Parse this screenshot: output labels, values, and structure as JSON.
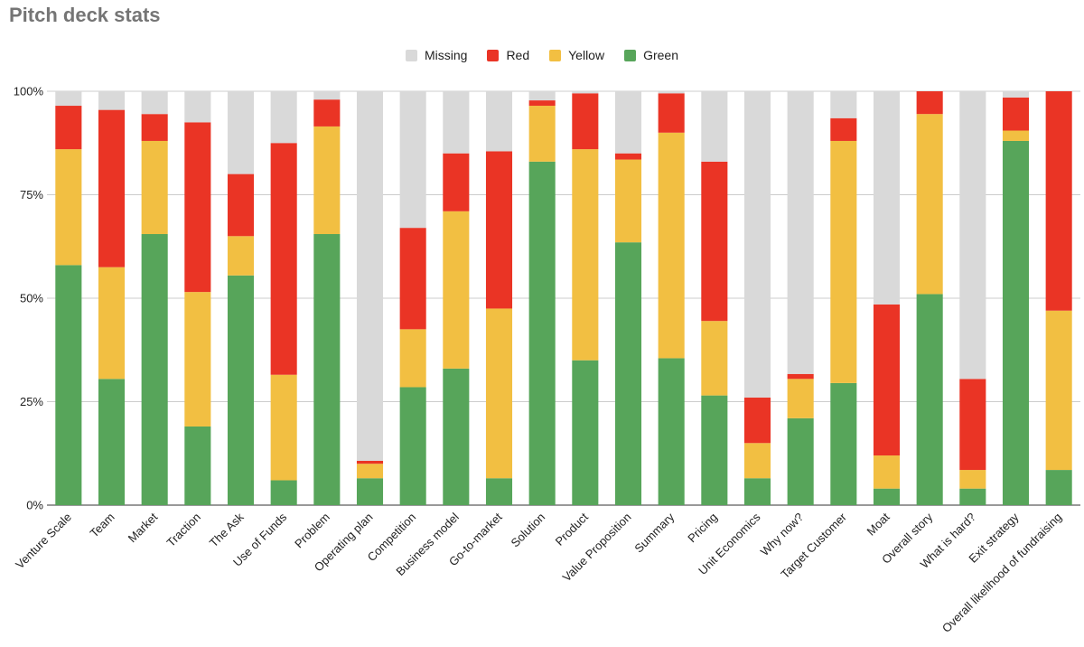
{
  "chart_data": {
    "type": "bar",
    "stacked": "percent",
    "title": "Pitch deck stats",
    "xlabel": "",
    "ylabel": "",
    "ylim": [
      0,
      100
    ],
    "yticks": [
      {
        "value": 0,
        "label": "0%"
      },
      {
        "value": 25,
        "label": "25%"
      },
      {
        "value": 50,
        "label": "50%"
      },
      {
        "value": 75,
        "label": "75%"
      },
      {
        "value": 100,
        "label": "100%"
      }
    ],
    "grid": true,
    "legend_position": "top-center",
    "categories": [
      "Venture Scale",
      "Team",
      "Market",
      "Traction",
      "The Ask",
      "Use of Funds",
      "Problem",
      "Operating plan",
      "Competition",
      "Business model",
      "Go-to-market",
      "Solution",
      "Product",
      "Value Proposition",
      "Summary",
      "Pricing",
      "Unit Economics",
      "Why now?",
      "Target Customer",
      "Moat",
      "Overall story",
      "What is hard?",
      "Exit strategy",
      "Overall likelihood of fundraising"
    ],
    "series": [
      {
        "name": "Green",
        "color": "#57a55a",
        "values": [
          58,
          30.5,
          65.5,
          19,
          55.5,
          6,
          65.5,
          6.5,
          28.5,
          33,
          6.5,
          83,
          35,
          63.5,
          35.5,
          26.5,
          6.5,
          21,
          29.5,
          4,
          51,
          4,
          88,
          8.5
        ]
      },
      {
        "name": "Yellow",
        "color": "#f2bf42",
        "values": [
          28,
          27,
          22.5,
          32.5,
          9.5,
          25.5,
          26,
          3.5,
          14,
          38,
          41,
          13.5,
          51,
          20,
          54.5,
          18,
          8.5,
          9.5,
          58.5,
          8,
          43.5,
          4.5,
          2.5,
          38.5
        ]
      },
      {
        "name": "Red",
        "color": "#ea3425",
        "values": [
          10.5,
          38,
          6.5,
          41,
          15,
          56,
          6.5,
          0.7,
          24.5,
          14,
          38,
          1.3,
          13.5,
          1.5,
          9.5,
          38.5,
          11,
          1.2,
          5.5,
          36.5,
          5.5,
          22,
          8,
          53
        ]
      },
      {
        "name": "Missing",
        "color": "#d9d9d9",
        "values": [
          3.5,
          4.5,
          5.5,
          7.5,
          20,
          12.5,
          2,
          89.3,
          33,
          15,
          14.5,
          2.2,
          0.5,
          15,
          0.5,
          17,
          74,
          68.3,
          6.5,
          51.5,
          0,
          69.5,
          1.5,
          0
        ]
      }
    ],
    "legend_order": [
      "Missing",
      "Red",
      "Yellow",
      "Green"
    ]
  }
}
